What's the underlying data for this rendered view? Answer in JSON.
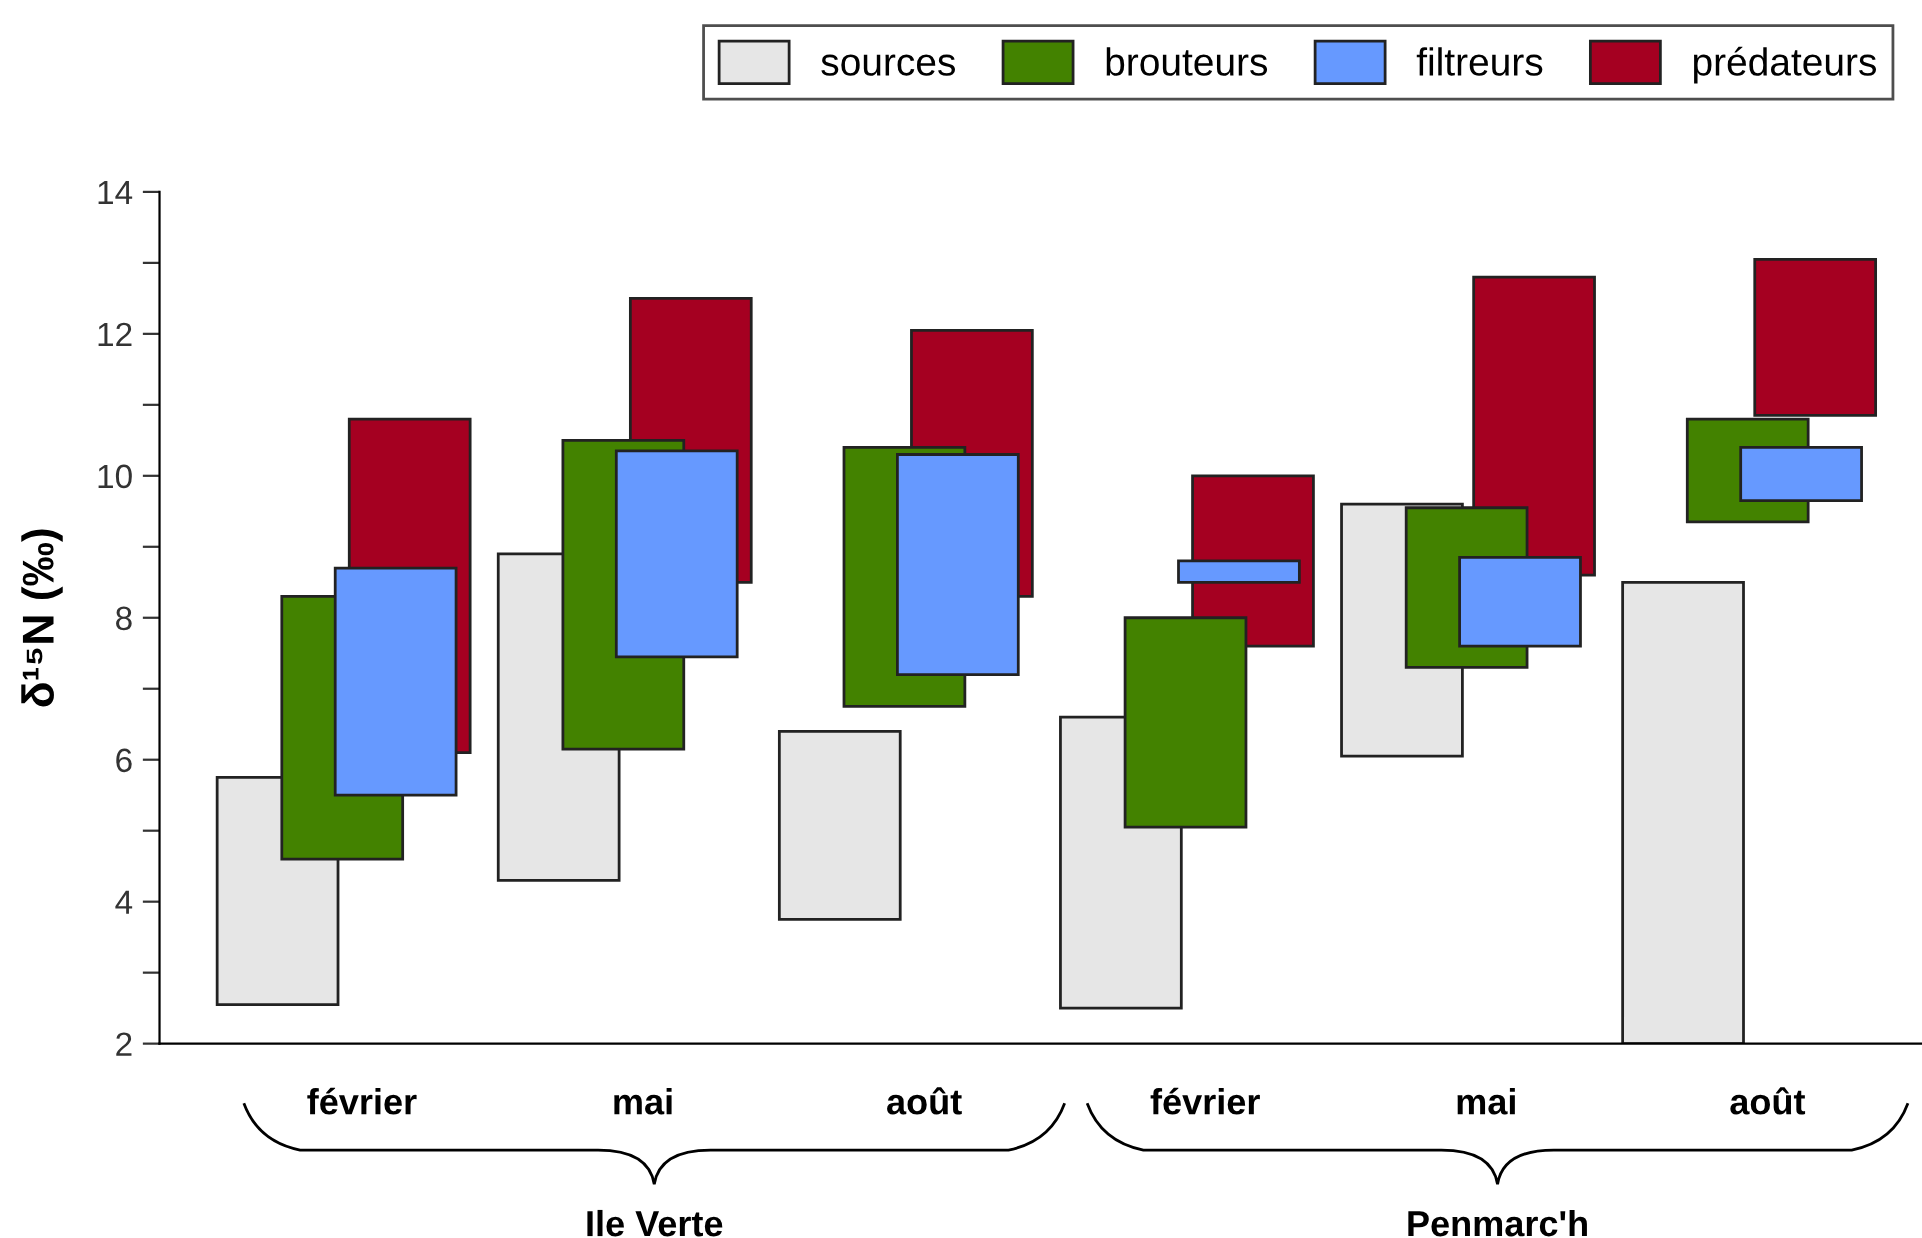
{
  "chart_data": {
    "type": "bar",
    "ylabel": "δ¹⁵N (‰)",
    "categories": [
      "février",
      "mai",
      "août",
      "février",
      "mai",
      "août"
    ],
    "series": [
      {
        "name": "sources",
        "color": "#e6e6e6",
        "base": [
          2.55,
          4.3,
          3.75,
          2.5,
          6.05,
          2.0
        ],
        "values": [
          3.2,
          4.6,
          2.65,
          4.1,
          3.55,
          6.5
        ]
      },
      {
        "name": "brouteurs",
        "color": "#438200",
        "base": [
          4.6,
          6.15,
          6.75,
          5.05,
          7.3,
          9.35
        ],
        "values": [
          3.7,
          4.35,
          3.65,
          2.95,
          2.25,
          1.45
        ]
      },
      {
        "name": "filtreurs",
        "color": "#6699ff",
        "base": [
          5.5,
          7.45,
          7.2,
          8.5,
          7.6,
          9.65
        ],
        "values": [
          3.2,
          2.9,
          3.1,
          0.3,
          1.25,
          0.75
        ]
      },
      {
        "name": "prédateurs",
        "color": "#a50021",
        "base": [
          6.1,
          8.5,
          8.3,
          7.6,
          8.6,
          10.85
        ],
        "values": [
          4.7,
          4.0,
          3.75,
          2.4,
          4.2,
          2.2
        ]
      }
    ],
    "ylim": [
      2,
      14
    ],
    "yticks": [
      2,
      {
        "value": 3,
        "label": null
      },
      4,
      {
        "value": 5,
        "label": null
      },
      6,
      {
        "value": 7,
        "label": null
      },
      8,
      {
        "value": 9,
        "label": null
      },
      10,
      {
        "value": 11,
        "label": null
      },
      12,
      {
        "value": 13,
        "label": null
      },
      14
    ],
    "annotations": [
      "Ile Verte",
      "Penmarc'h"
    ],
    "legend": "top right",
    "grid": false
  }
}
